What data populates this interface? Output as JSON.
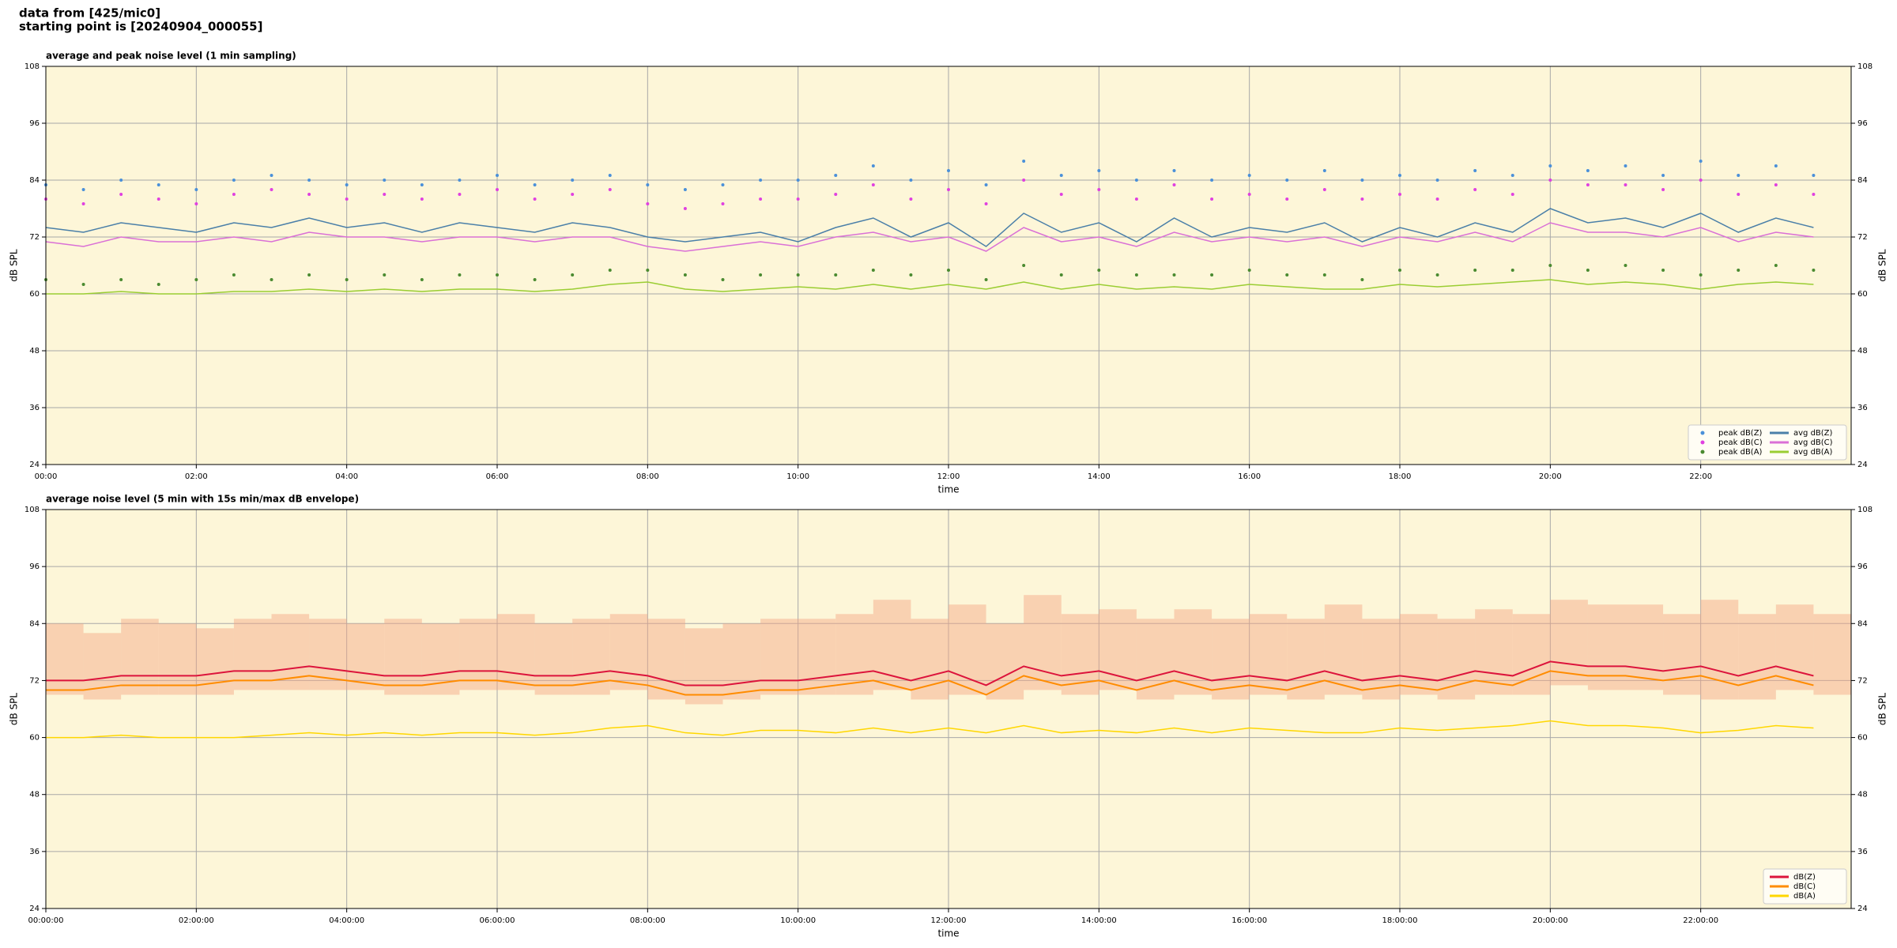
{
  "header": {
    "line1": "data from [425/mic0]",
    "line2": "starting point is [20240904_000055]"
  },
  "chart_data": [
    {
      "type": "line",
      "title": "average and peak noise level (1 min sampling)",
      "x_label": "time",
      "y_label": "dB SPL",
      "background": "#fdf6d8",
      "grid": true,
      "legend": "lower right",
      "xlim": [
        0,
        24
      ],
      "ylim": [
        24,
        108
      ],
      "yticks": [
        24,
        36,
        48,
        60,
        72,
        84,
        96,
        108
      ],
      "xticks": [
        {
          "value": 0,
          "label": "00:00"
        },
        {
          "value": 2,
          "label": "02:00"
        },
        {
          "value": 4,
          "label": "04:00"
        },
        {
          "value": 6,
          "label": "06:00"
        },
        {
          "value": 8,
          "label": "08:00"
        },
        {
          "value": 10,
          "label": "10:00"
        },
        {
          "value": 12,
          "label": "12:00"
        },
        {
          "value": 14,
          "label": "14:00"
        },
        {
          "value": 16,
          "label": "16:00"
        },
        {
          "value": 18,
          "label": "18:00"
        },
        {
          "value": 20,
          "label": "20:00"
        },
        {
          "value": 22,
          "label": "22:00"
        }
      ],
      "x": [
        0,
        0.5,
        1,
        1.5,
        2,
        2.5,
        3,
        3.5,
        4,
        4.5,
        5,
        5.5,
        6,
        6.5,
        7,
        7.5,
        8,
        8.5,
        9,
        9.5,
        10,
        10.5,
        11,
        11.5,
        12,
        12.5,
        13,
        13.5,
        14,
        14.5,
        15,
        15.5,
        16,
        16.5,
        17,
        17.5,
        18,
        18.5,
        19,
        19.5,
        20,
        20.5,
        21,
        21.5,
        22,
        22.5,
        23,
        23.5
      ],
      "series": [
        {
          "name": "peak dB(Z)",
          "type": "scatter",
          "color": "#4a90d9",
          "values": [
            83,
            82,
            84,
            83,
            82,
            84,
            85,
            84,
            83,
            84,
            83,
            84,
            85,
            83,
            84,
            85,
            83,
            82,
            83,
            84,
            84,
            85,
            87,
            84,
            86,
            83,
            88,
            85,
            86,
            84,
            86,
            84,
            85,
            84,
            86,
            84,
            85,
            84,
            86,
            85,
            87,
            86,
            87,
            85,
            88,
            85,
            87,
            85
          ]
        },
        {
          "name": "peak dB(C)",
          "type": "scatter",
          "color": "#e040e0",
          "values": [
            80,
            79,
            81,
            80,
            79,
            81,
            82,
            81,
            80,
            81,
            80,
            81,
            82,
            80,
            81,
            82,
            79,
            78,
            79,
            80,
            80,
            81,
            83,
            80,
            82,
            79,
            84,
            81,
            82,
            80,
            83,
            80,
            81,
            80,
            82,
            80,
            81,
            80,
            82,
            81,
            84,
            83,
            83,
            82,
            84,
            81,
            83,
            81
          ]
        },
        {
          "name": "peak dB(A)",
          "type": "scatter",
          "color": "#4a8a30",
          "values": [
            63,
            62,
            63,
            62,
            63,
            64,
            63,
            64,
            63,
            64,
            63,
            64,
            64,
            63,
            64,
            65,
            65,
            64,
            63,
            64,
            64,
            64,
            65,
            64,
            65,
            63,
            66,
            64,
            65,
            64,
            64,
            64,
            65,
            64,
            64,
            63,
            65,
            64,
            65,
            65,
            66,
            65,
            66,
            65,
            64,
            65,
            66,
            65
          ]
        },
        {
          "name": "avg dB(Z)",
          "type": "line",
          "color": "#4a7fa8",
          "values": [
            74,
            73,
            75,
            74,
            73,
            75,
            74,
            76,
            74,
            75,
            73,
            75,
            74,
            73,
            75,
            74,
            72,
            71,
            72,
            73,
            71,
            74,
            76,
            72,
            75,
            70,
            77,
            73,
            75,
            71,
            76,
            72,
            74,
            73,
            75,
            71,
            74,
            72,
            75,
            73,
            78,
            75,
            76,
            74,
            77,
            73,
            76,
            74
          ]
        },
        {
          "name": "avg dB(C)",
          "type": "line",
          "color": "#da70d6",
          "values": [
            71,
            70,
            72,
            71,
            71,
            72,
            71,
            73,
            72,
            72,
            71,
            72,
            72,
            71,
            72,
            72,
            70,
            69,
            70,
            71,
            70,
            72,
            73,
            71,
            72,
            69,
            74,
            71,
            72,
            70,
            73,
            71,
            72,
            71,
            72,
            70,
            72,
            71,
            73,
            71,
            75,
            73,
            73,
            72,
            74,
            71,
            73,
            72
          ]
        },
        {
          "name": "avg dB(A)",
          "type": "line",
          "color": "#9acd32",
          "values": [
            60,
            60,
            60.5,
            60,
            60,
            60.5,
            60.5,
            61,
            60.5,
            61,
            60.5,
            61,
            61,
            60.5,
            61,
            62,
            62.5,
            61,
            60.5,
            61,
            61.5,
            61,
            62,
            61,
            62,
            61,
            62.5,
            61,
            62,
            61,
            61.5,
            61,
            62,
            61.5,
            61,
            61,
            62,
            61.5,
            62,
            62.5,
            63,
            62,
            62.5,
            62,
            61,
            62,
            62.5,
            62
          ]
        }
      ]
    },
    {
      "type": "line",
      "title": "average noise level (5 min with 15s min/max dB envelope)",
      "x_label": "time",
      "y_label": "dB SPL",
      "background": "#fdf6d8",
      "grid": true,
      "legend": "lower right",
      "xlim": [
        0,
        24
      ],
      "ylim": [
        24,
        108
      ],
      "yticks": [
        24,
        36,
        48,
        60,
        72,
        84,
        96,
        108
      ],
      "xticks": [
        {
          "value": 0,
          "label": "00:00:00"
        },
        {
          "value": 2,
          "label": "02:00:00"
        },
        {
          "value": 4,
          "label": "04:00:00"
        },
        {
          "value": 6,
          "label": "06:00:00"
        },
        {
          "value": 8,
          "label": "08:00:00"
        },
        {
          "value": 10,
          "label": "10:00:00"
        },
        {
          "value": 12,
          "label": "12:00:00"
        },
        {
          "value": 14,
          "label": "14:00:00"
        },
        {
          "value": 16,
          "label": "16:00:00"
        },
        {
          "value": 18,
          "label": "18:00:00"
        },
        {
          "value": 20,
          "label": "20:00:00"
        },
        {
          "value": 22,
          "label": "22:00:00"
        }
      ],
      "x": [
        0,
        0.5,
        1,
        1.5,
        2,
        2.5,
        3,
        3.5,
        4,
        4.5,
        5,
        5.5,
        6,
        6.5,
        7,
        7.5,
        8,
        8.5,
        9,
        9.5,
        10,
        10.5,
        11,
        11.5,
        12,
        12.5,
        13,
        13.5,
        14,
        14.5,
        15,
        15.5,
        16,
        16.5,
        17,
        17.5,
        18,
        18.5,
        19,
        19.5,
        20,
        20.5,
        21,
        21.5,
        22,
        22.5,
        23,
        23.5
      ],
      "envelope": {
        "color": "#f4a582",
        "lower": [
          69,
          68,
          69,
          69,
          69,
          70,
          70,
          70,
          70,
          69,
          69,
          70,
          70,
          69,
          69,
          70,
          68,
          67,
          68,
          69,
          69,
          69,
          70,
          68,
          69,
          68,
          70,
          69,
          70,
          68,
          69,
          68,
          69,
          68,
          69,
          68,
          69,
          68,
          69,
          69,
          71,
          70,
          70,
          69,
          68,
          68,
          70,
          69
        ],
        "upper": [
          84,
          82,
          85,
          84,
          83,
          85,
          86,
          85,
          84,
          85,
          84,
          85,
          86,
          84,
          85,
          86,
          85,
          83,
          84,
          85,
          85,
          86,
          89,
          85,
          88,
          84,
          90,
          86,
          87,
          85,
          87,
          85,
          86,
          85,
          88,
          85,
          86,
          85,
          87,
          86,
          89,
          88,
          88,
          86,
          89,
          86,
          88,
          86
        ]
      },
      "series": [
        {
          "name": "dB(Z)",
          "type": "line",
          "color": "#dc143c",
          "values": [
            72,
            72,
            73,
            73,
            73,
            74,
            74,
            75,
            74,
            73,
            73,
            74,
            74,
            73,
            73,
            74,
            73,
            71,
            71,
            72,
            72,
            73,
            74,
            72,
            74,
            71,
            75,
            73,
            74,
            72,
            74,
            72,
            73,
            72,
            74,
            72,
            73,
            72,
            74,
            73,
            76,
            75,
            75,
            74,
            75,
            73,
            75,
            73
          ]
        },
        {
          "name": "dB(C)",
          "type": "line",
          "color": "#ff8c00",
          "values": [
            70,
            70,
            71,
            71,
            71,
            72,
            72,
            73,
            72,
            71,
            71,
            72,
            72,
            71,
            71,
            72,
            71,
            69,
            69,
            70,
            70,
            71,
            72,
            70,
            72,
            69,
            73,
            71,
            72,
            70,
            72,
            70,
            71,
            70,
            72,
            70,
            71,
            70,
            72,
            71,
            74,
            73,
            73,
            72,
            73,
            71,
            73,
            71
          ]
        },
        {
          "name": "dB(A)",
          "type": "line",
          "color": "#ffd700",
          "values": [
            60,
            60,
            60.5,
            60,
            60,
            60,
            60.5,
            61,
            60.5,
            61,
            60.5,
            61,
            61,
            60.5,
            61,
            62,
            62.5,
            61,
            60.5,
            61.5,
            61.5,
            61,
            62,
            61,
            62,
            61,
            62.5,
            61,
            61.5,
            61,
            62,
            61,
            62,
            61.5,
            61,
            61,
            62,
            61.5,
            62,
            62.5,
            63.5,
            62.5,
            62.5,
            62,
            61,
            61.5,
            62.5,
            62
          ]
        }
      ]
    }
  ]
}
